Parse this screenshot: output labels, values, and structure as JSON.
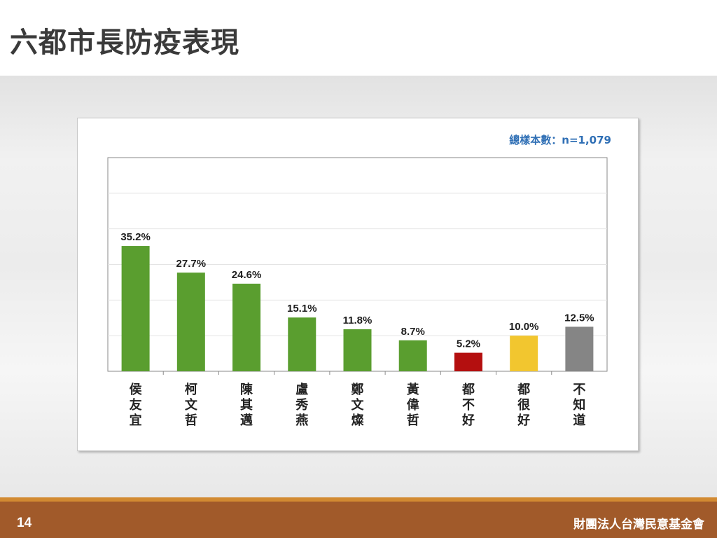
{
  "slide": {
    "title": "六都市長防疫表現",
    "page_number": "14",
    "organization": "財團法人台灣民意基金會"
  },
  "chart_data": {
    "type": "bar",
    "sample_label": "總樣本數：n=1,079",
    "categories": [
      "侯友宜",
      "柯文哲",
      "陳其邁",
      "盧秀燕",
      "鄭文燦",
      "黃偉哲",
      "都不好",
      "都很好",
      "不知道"
    ],
    "values": [
      35.2,
      27.7,
      24.6,
      15.1,
      11.8,
      8.7,
      5.2,
      10.0,
      12.5
    ],
    "value_labels": [
      "35.2%",
      "27.7%",
      "24.6%",
      "15.1%",
      "11.8%",
      "8.7%",
      "5.2%",
      "10.0%",
      "12.5%"
    ],
    "colors": [
      "#5a9e2f",
      "#5a9e2f",
      "#5a9e2f",
      "#5a9e2f",
      "#5a9e2f",
      "#5a9e2f",
      "#b40f0f",
      "#f2c62f",
      "#858585"
    ],
    "ylim": [
      0,
      60
    ],
    "grid": true,
    "title": "",
    "xlabel": "",
    "ylabel": ""
  }
}
